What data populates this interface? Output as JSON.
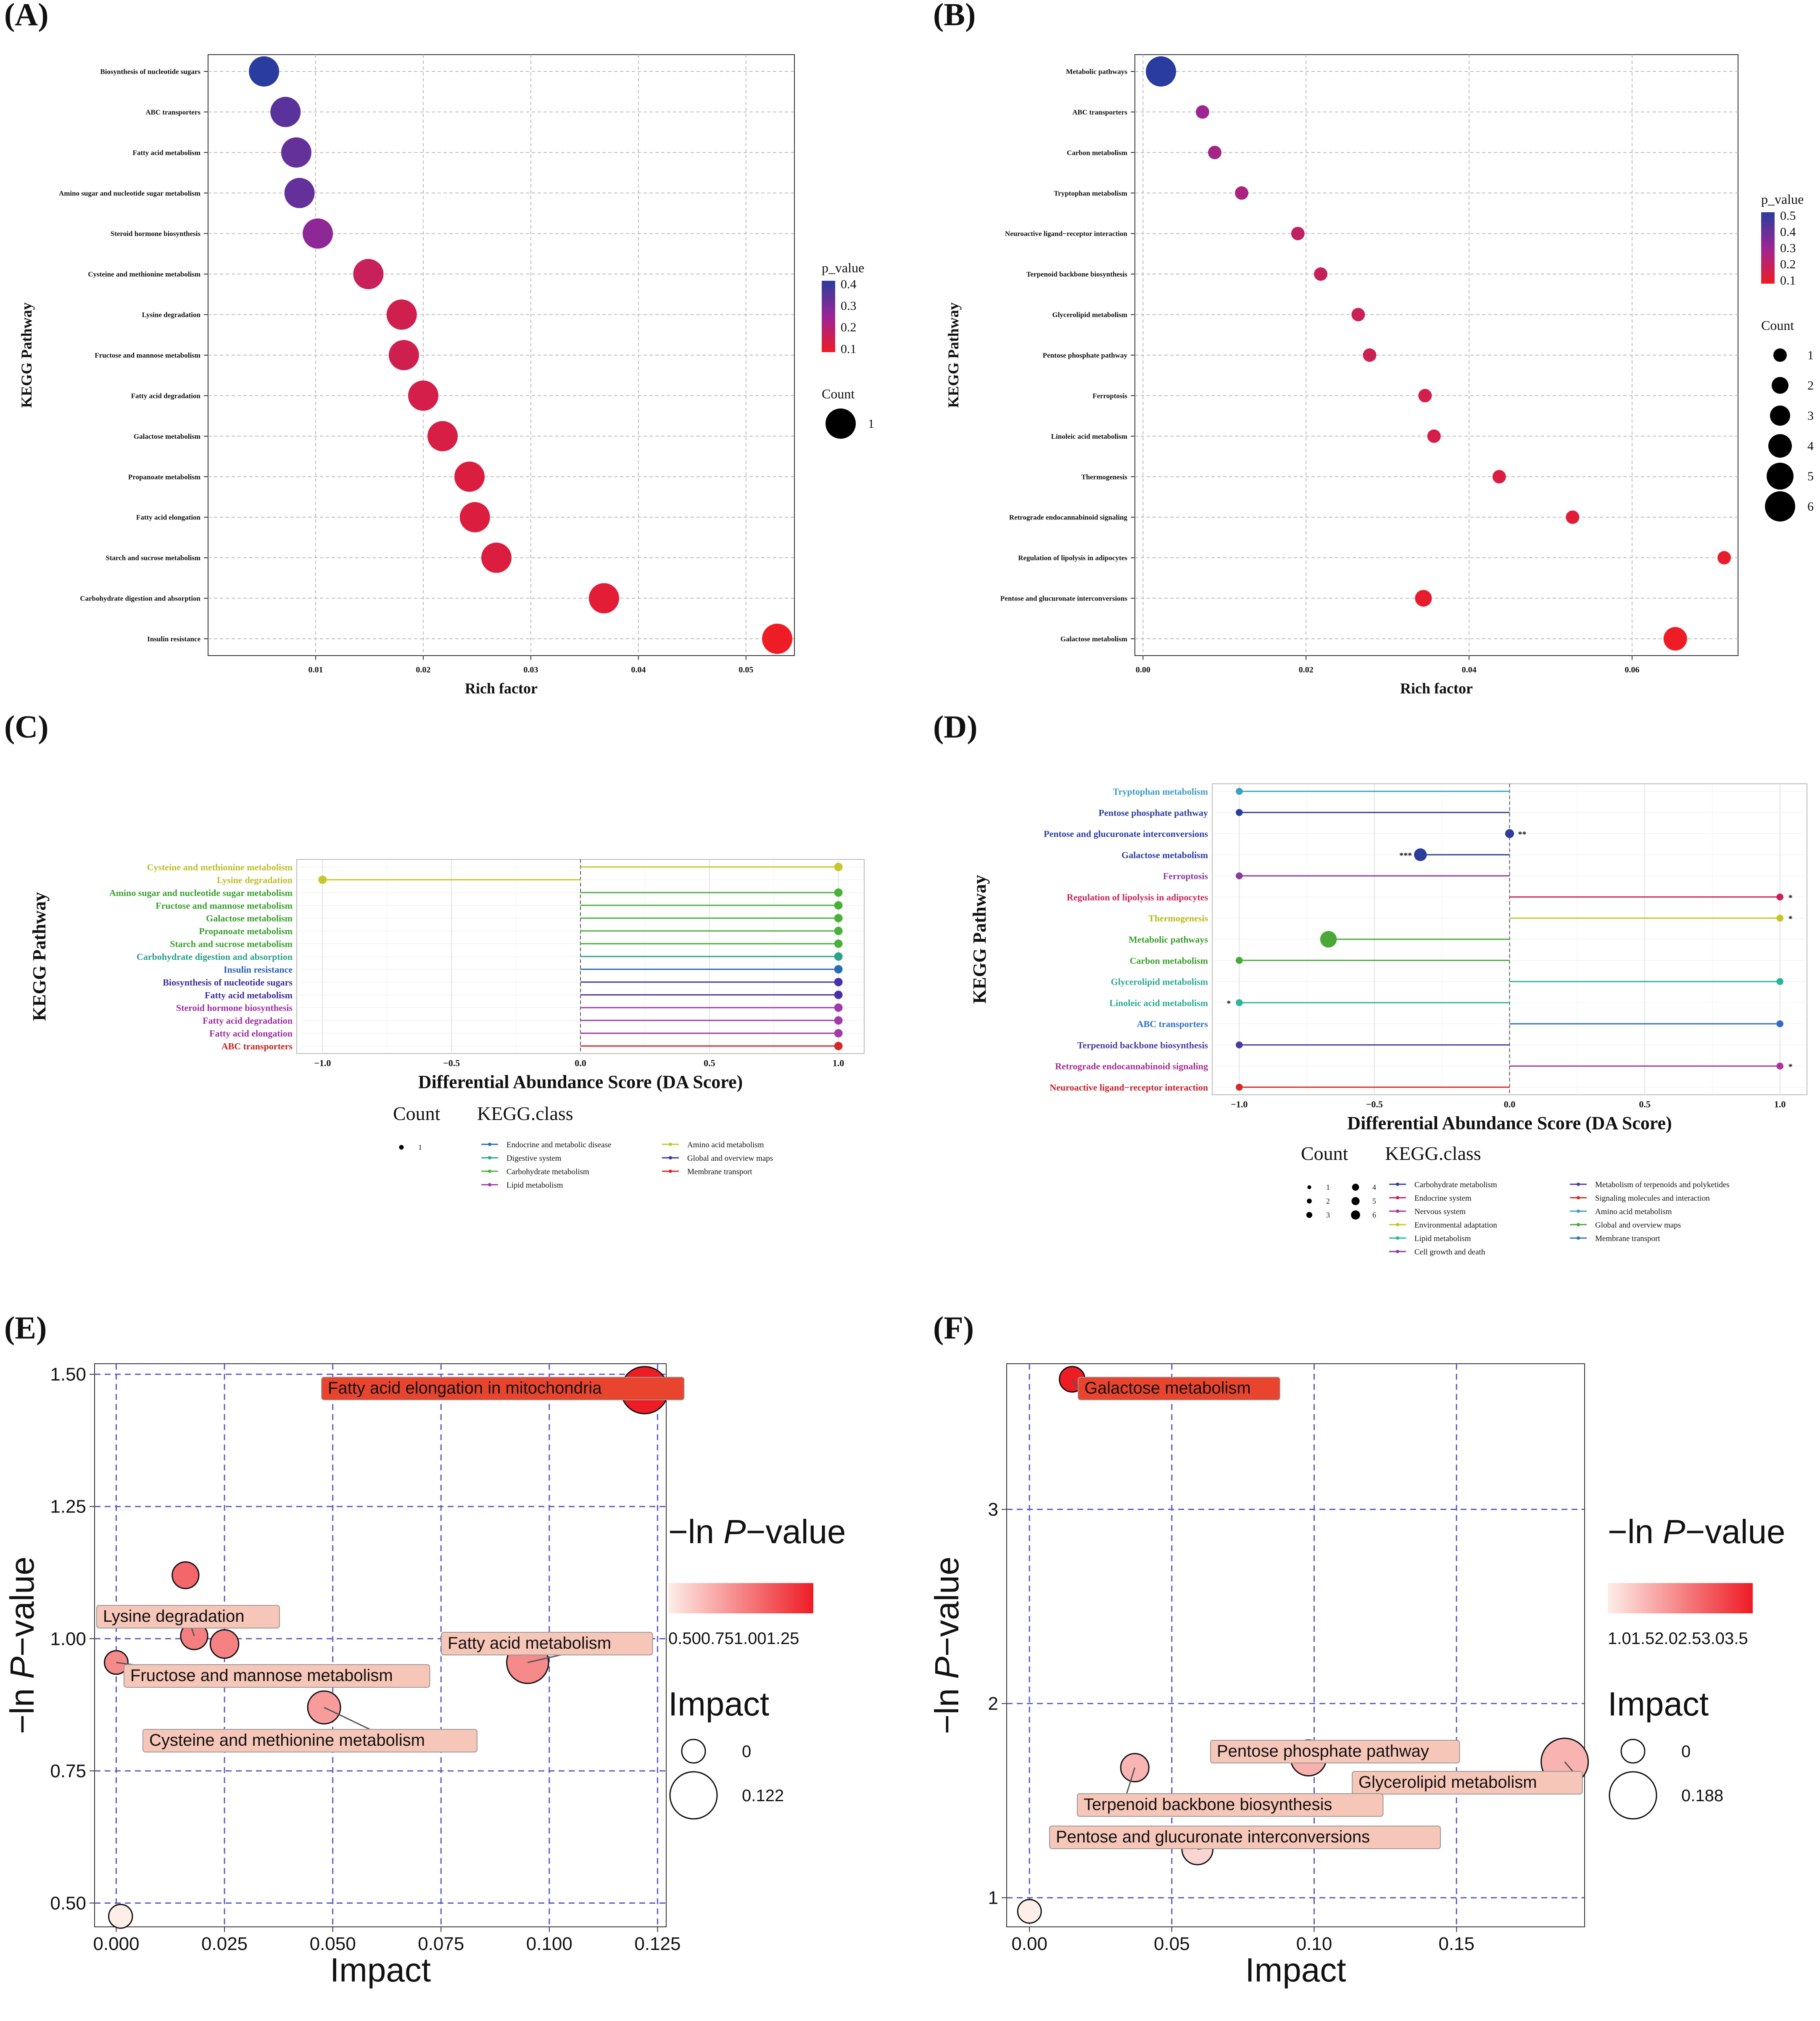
{
  "colors": {
    "grid": "#bdbdbd",
    "panel_border": "#333333",
    "low_p": "#ee1c25",
    "mid_p": "#9b2596",
    "high_p": "#2a3d9e",
    "dashed_grid": "#5b5bc8",
    "label_box_dark": "#e8442e",
    "label_box_light": "#f6c6b8"
  },
  "chart_data": [
    {
      "panel": "(A)",
      "type": "scatter",
      "title": "",
      "xlabel": "Rich factor",
      "ylabel": "KEGG Pathway",
      "xlim": [
        0.0,
        0.0545
      ],
      "xticks": [
        "0.01",
        "0.02",
        "0.03",
        "0.04",
        "0.05"
      ],
      "xtick_values": [
        0.01,
        0.02,
        0.03,
        0.04,
        0.05
      ],
      "pathways": [
        "Biosynthesis of nucleotide sugars",
        "ABC transporters",
        "Fatty acid metabolism",
        "Amino sugar and nucleotide sugar metabolism",
        "Steroid hormone biosynthesis",
        "Cysteine and methionine metabolism",
        "Lysine degradation",
        "Fructose and mannose metabolism",
        "Fatty acid degradation",
        "Galactose metabolism",
        "Propanoate metabolism",
        "Fatty acid elongation",
        "Starch and sucrose metabolism",
        "Carbohydrate digestion and absorption",
        "Insulin resistance"
      ],
      "rich_factor": [
        0.0052,
        0.0072,
        0.0082,
        0.0085,
        0.0102,
        0.0149,
        0.018,
        0.0182,
        0.02,
        0.0218,
        0.0243,
        0.0248,
        0.0268,
        0.0368,
        0.0529
      ],
      "p_value": [
        0.45,
        0.36,
        0.34,
        0.34,
        0.26,
        0.12,
        0.1,
        0.1,
        0.09,
        0.08,
        0.07,
        0.07,
        0.07,
        0.05,
        0.02
      ],
      "count": [
        1,
        1,
        1,
        1,
        1,
        1,
        1,
        1,
        1,
        1,
        1,
        1,
        1,
        1,
        1
      ],
      "legend": {
        "color_title": "p_value",
        "color_ticks": [
          "0.4",
          "0.3",
          "0.2",
          "0.1"
        ],
        "size_title": "Count",
        "size_ticks": [
          "1"
        ]
      }
    },
    {
      "panel": "(B)",
      "type": "scatter",
      "title": "",
      "xlabel": "Rich factor",
      "ylabel": "KEGG Pathway",
      "xlim": [
        -0.001,
        0.073
      ],
      "xticks": [
        "0.00",
        "0.02",
        "0.04",
        "0.06"
      ],
      "xtick_values": [
        0.0,
        0.02,
        0.04,
        0.06
      ],
      "pathways": [
        "Metabolic pathways",
        "ABC transporters",
        "Carbon metabolism",
        "Tryptophan metabolism",
        "Neuroactive ligand−receptor interaction",
        "Terpenoid backbone biosynthesis",
        "Glycerolipid metabolism",
        "Pentose phosphate pathway",
        "Ferroptosis",
        "Linoleic acid metabolism",
        "Thermogenesis",
        "Retrograde endocannabinoid signaling",
        "Regulation of lipolysis in adipocytes",
        "Pentose and glucuronate interconversions",
        "Galactose metabolism"
      ],
      "rich_factor": [
        0.0022,
        0.0073,
        0.0088,
        0.0121,
        0.019,
        0.0218,
        0.0264,
        0.0278,
        0.0346,
        0.0357,
        0.0437,
        0.0527,
        0.0713,
        0.0344,
        0.0653
      ],
      "p_value": [
        0.52,
        0.26,
        0.24,
        0.22,
        0.16,
        0.14,
        0.13,
        0.12,
        0.1,
        0.1,
        0.08,
        0.06,
        0.04,
        0.04,
        0.02
      ],
      "count": [
        6,
        1,
        1,
        1,
        1,
        1,
        1,
        1,
        1,
        1,
        1,
        1,
        1,
        2,
        4
      ],
      "legend": {
        "color_title": "p_value",
        "color_ticks": [
          "0.5",
          "0.4",
          "0.3",
          "0.2",
          "0.1"
        ],
        "size_title": "Count",
        "size_ticks": [
          "1",
          "2",
          "3",
          "4",
          "5",
          "6"
        ]
      }
    },
    {
      "panel": "(C)",
      "type": "lollipop",
      "title": "",
      "xlabel": "Differential Abundance Score (DA Score)",
      "ylabel": "KEGG Pathway",
      "xlim": [
        -1.1,
        1.1
      ],
      "xticks": [
        "−1.0",
        "−0.5",
        "0.0",
        "0.5",
        "1.0"
      ],
      "xtick_values": [
        -1.0,
        -0.5,
        0.0,
        0.5,
        1.0
      ],
      "pathways": [
        "Cysteine and methionine metabolism",
        "Lysine degradation",
        "Amino sugar and nucleotide sugar metabolism",
        "Fructose and mannose metabolism",
        "Galactose metabolism",
        "Propanoate metabolism",
        "Starch and sucrose metabolism",
        "Carbohydrate digestion and absorption",
        "Insulin resistance",
        "Biosynthesis of nucleotide sugars",
        "Fatty acid metabolism",
        "Steroid hormone biosynthesis",
        "Fatty acid degradation",
        "Fatty acid elongation",
        "ABC transporters"
      ],
      "da_score": [
        1.0,
        -1.0,
        1.0,
        1.0,
        1.0,
        1.0,
        1.0,
        1.0,
        1.0,
        1.0,
        1.0,
        1.0,
        1.0,
        1.0,
        1.0
      ],
      "classes": [
        "Amino acid metabolism",
        "Amino acid metabolism",
        "Carbohydrate metabolism",
        "Carbohydrate metabolism",
        "Carbohydrate metabolism",
        "Carbohydrate metabolism",
        "Carbohydrate metabolism",
        "Digestive system",
        "Endocrine and metabolic disease",
        "Global and overview maps",
        "Global and overview maps",
        "Lipid metabolism",
        "Lipid metabolism",
        "Lipid metabolism",
        "Membrane transport"
      ],
      "count": [
        1,
        1,
        1,
        1,
        1,
        1,
        1,
        1,
        1,
        1,
        1,
        1,
        1,
        1,
        1
      ],
      "significance": [
        "",
        "",
        "",
        "",
        "",
        "",
        "",
        "",
        "",
        "",
        "",
        "",
        "",
        "",
        ""
      ],
      "legend": {
        "count_title": "Count",
        "count_ticks": [
          "1"
        ],
        "class_title": "KEGG.class",
        "class_col1": [
          "Endocrine and metabolic disease",
          "Digestive system",
          "Carbohydrate metabolism",
          "Lipid metabolism"
        ],
        "class_col2": [
          "Amino acid metabolism",
          "Global and overview maps",
          "Membrane transport"
        ]
      }
    },
    {
      "panel": "(D)",
      "type": "lollipop",
      "title": "",
      "xlabel": "Differential Abundance Score (DA Score)",
      "ylabel": "KEGG Pathway",
      "xlim": [
        -1.1,
        1.1
      ],
      "xticks": [
        "−1.0",
        "−0.5",
        "0.0",
        "0.5",
        "1.0"
      ],
      "xtick_values": [
        -1.0,
        -0.5,
        0.0,
        0.5,
        1.0
      ],
      "pathways": [
        "Tryptophan metabolism",
        "Pentose phosphate pathway",
        "Pentose and glucuronate interconversions",
        "Galactose metabolism",
        "Ferroptosis",
        "Regulation of lipolysis in adipocytes",
        "Thermogenesis",
        "Metabolic pathways",
        "Carbon metabolism",
        "Glycerolipid metabolism",
        "Linoleic acid metabolism",
        "ABC transporters",
        "Terpenoid backbone biosynthesis",
        "Retrograde endocannabinoid signaling",
        "Neuroactive ligand−receptor interaction"
      ],
      "da_score": [
        -1.0,
        -1.0,
        0.0,
        -0.33,
        -1.0,
        1.0,
        1.0,
        -0.67,
        -1.0,
        1.0,
        -1.0,
        1.0,
        -1.0,
        1.0,
        -1.0
      ],
      "classes": [
        "Amino acid metabolism",
        "Carbohydrate metabolism",
        "Carbohydrate metabolism",
        "Carbohydrate metabolism",
        "Cell growth and death",
        "Endocrine system",
        "Environmental adaptation",
        "Global and overview maps",
        "Global and overview maps",
        "Lipid metabolism",
        "Lipid metabolism",
        "Membrane transport",
        "Metabolism of terpenoids and polyketides",
        "Nervous system",
        "Signaling molecules and interaction"
      ],
      "count": [
        1,
        1,
        2,
        4,
        1,
        1,
        1,
        6,
        1,
        1,
        1,
        1,
        1,
        1,
        1
      ],
      "significance": [
        "",
        "",
        "**",
        "***",
        "",
        "*",
        "*",
        "",
        "",
        "",
        "*",
        "",
        "",
        "*",
        ""
      ],
      "legend": {
        "count_title": "Count",
        "count_ticks": [
          "1",
          "2",
          "3",
          "4",
          "5",
          "6"
        ],
        "class_title": "KEGG.class",
        "class_col1": [
          "Carbohydrate metabolism",
          "Endocrine system",
          "Nervous system",
          "Environmental adaptation",
          "Lipid metabolism",
          "Cell growth and death"
        ],
        "class_col2": [
          "Metabolism of terpenoids and polyketides",
          "Signaling molecules and interaction",
          "Amino acid metabolism",
          "Global and overview maps",
          "Membrane transport"
        ]
      }
    },
    {
      "panel": "(E)",
      "type": "bubble",
      "title": "",
      "xlabel": "Impact",
      "ylabel": "−ln P−value",
      "xlim": [
        -0.005,
        0.127
      ],
      "ylim": [
        0.455,
        1.52
      ],
      "xticks": [
        "0.000",
        "0.025",
        "0.050",
        "0.075",
        "0.100",
        "0.125"
      ],
      "xtick_values": [
        0.0,
        0.025,
        0.05,
        0.075,
        0.1,
        0.125
      ],
      "yticks": [
        "0.50",
        "0.75",
        "1.00",
        "1.25",
        "1.50"
      ],
      "ytick_values": [
        0.5,
        0.75,
        1.0,
        1.25,
        1.5
      ],
      "points": [
        {
          "label": "Fatty acid elongation in mitochondria",
          "impact": 0.122,
          "neg_ln_p": 1.47
        },
        {
          "label": "",
          "impact": 0.016,
          "neg_ln_p": 1.12
        },
        {
          "label": "Lysine degradation",
          "impact": 0.018,
          "neg_ln_p": 1.005
        },
        {
          "label": "",
          "impact": 0.025,
          "neg_ln_p": 0.99
        },
        {
          "label": "Fructose and mannose metabolism",
          "impact": 0.0,
          "neg_ln_p": 0.955
        },
        {
          "label": "Fatty acid metabolism",
          "impact": 0.095,
          "neg_ln_p": 0.955
        },
        {
          "label": "Cysteine and methionine metabolism",
          "impact": 0.048,
          "neg_ln_p": 0.87
        },
        {
          "label": "",
          "impact": 0.001,
          "neg_ln_p": 0.475
        }
      ],
      "legend": {
        "color_title_main": "−ln ",
        "color_title_italic": "P",
        "color_title_rest": "−value",
        "color_ticks": [
          "0.50",
          "0.75",
          "1.00",
          "1.25"
        ],
        "size_title": "Impact",
        "size_ticks": [
          "0",
          "0.122"
        ]
      }
    },
    {
      "panel": "(F)",
      "type": "bubble",
      "title": "",
      "xlabel": "Impact",
      "ylabel": "−ln P−value",
      "xlim": [
        -0.008,
        0.195
      ],
      "ylim": [
        0.85,
        3.75
      ],
      "xticks": [
        "0.00",
        "0.05",
        "0.10",
        "0.15"
      ],
      "xtick_values": [
        0.0,
        0.05,
        0.1,
        0.15
      ],
      "yticks": [
        "1",
        "2",
        "3"
      ],
      "ytick_values": [
        1,
        2,
        3
      ],
      "points": [
        {
          "label": "Galactose metabolism",
          "impact": 0.015,
          "neg_ln_p": 3.67
        },
        {
          "label": "Pentose phosphate pathway",
          "impact": 0.098,
          "neg_ln_p": 1.72
        },
        {
          "label": "Glycerolipid metabolism",
          "impact": 0.188,
          "neg_ln_p": 1.7
        },
        {
          "label": "Terpenoid backbone biosynthesis",
          "impact": 0.037,
          "neg_ln_p": 1.67
        },
        {
          "label": "Pentose and glucuronate interconversions",
          "impact": 0.059,
          "neg_ln_p": 1.25
        },
        {
          "label": "",
          "impact": 0.0,
          "neg_ln_p": 0.93
        }
      ],
      "legend": {
        "color_title_main": "−ln ",
        "color_title_italic": "P",
        "color_title_rest": "−value",
        "color_ticks": [
          "1.0",
          "1.5",
          "2.0",
          "2.5",
          "3.0",
          "3.5"
        ],
        "size_title": "Impact",
        "size_ticks": [
          "0",
          "0.188"
        ]
      }
    }
  ]
}
